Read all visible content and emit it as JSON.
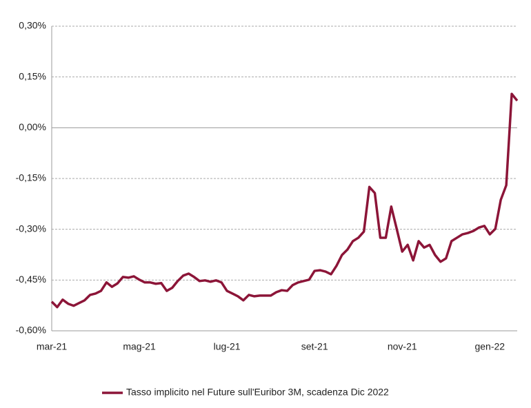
{
  "chart_data": {
    "type": "line",
    "categories": [
      "mar-21",
      null,
      null,
      null,
      null,
      null,
      null,
      null,
      null,
      null,
      null,
      null,
      null,
      null,
      null,
      null,
      "mag-21",
      null,
      null,
      null,
      null,
      null,
      null,
      null,
      null,
      null,
      null,
      null,
      null,
      null,
      null,
      null,
      "lug-21",
      null,
      null,
      null,
      null,
      null,
      null,
      null,
      null,
      null,
      null,
      null,
      null,
      null,
      null,
      null,
      "set-21",
      null,
      null,
      null,
      null,
      null,
      null,
      null,
      null,
      null,
      null,
      null,
      null,
      null,
      null,
      null,
      "nov-21",
      null,
      null,
      null,
      null,
      null,
      null,
      null,
      null,
      null,
      null,
      null,
      null,
      null,
      null,
      null,
      "gen-22",
      null,
      null,
      null,
      null,
      null
    ],
    "series": [
      {
        "name": "Tasso implicito nel Future sull'Euribor 3M, scadenza Dic 2022",
        "color": "#8c1538",
        "values": [
          -0.514,
          -0.53,
          -0.508,
          -0.52,
          -0.526,
          -0.518,
          -0.51,
          -0.494,
          -0.49,
          -0.482,
          -0.457,
          -0.47,
          -0.46,
          -0.441,
          -0.443,
          -0.439,
          -0.449,
          -0.457,
          -0.457,
          -0.461,
          -0.459,
          -0.482,
          -0.473,
          -0.453,
          -0.437,
          -0.431,
          -0.441,
          -0.453,
          -0.451,
          -0.455,
          -0.451,
          -0.457,
          -0.482,
          -0.49,
          -0.498,
          -0.51,
          -0.494,
          -0.498,
          -0.496,
          -0.496,
          -0.496,
          -0.486,
          -0.48,
          -0.482,
          -0.465,
          -0.457,
          -0.453,
          -0.449,
          -0.423,
          -0.421,
          -0.425,
          -0.433,
          -0.408,
          -0.376,
          -0.36,
          -0.335,
          -0.325,
          -0.307,
          -0.175,
          -0.193,
          -0.325,
          -0.325,
          -0.233,
          -0.299,
          -0.366,
          -0.346,
          -0.392,
          -0.335,
          -0.354,
          -0.346,
          -0.376,
          -0.396,
          -0.386,
          -0.335,
          -0.325,
          -0.315,
          -0.311,
          -0.305,
          -0.295,
          -0.29,
          -0.315,
          -0.299,
          -0.213,
          -0.17,
          0.1,
          0.08
        ]
      }
    ],
    "ylim": [
      -0.6,
      0.3
    ],
    "yticks": [
      {
        "value": -0.6,
        "label": "-0,60%"
      },
      {
        "value": -0.45,
        "label": "-0,45%"
      },
      {
        "value": -0.3,
        "label": "-0,30%"
      },
      {
        "value": -0.15,
        "label": "-0,15%"
      },
      {
        "value": 0,
        "label": "0,00%"
      },
      {
        "value": 0.15,
        "label": "0,15%"
      },
      {
        "value": 0.3,
        "label": "0,30%"
      }
    ],
    "grid": true,
    "legend": "bottom"
  }
}
